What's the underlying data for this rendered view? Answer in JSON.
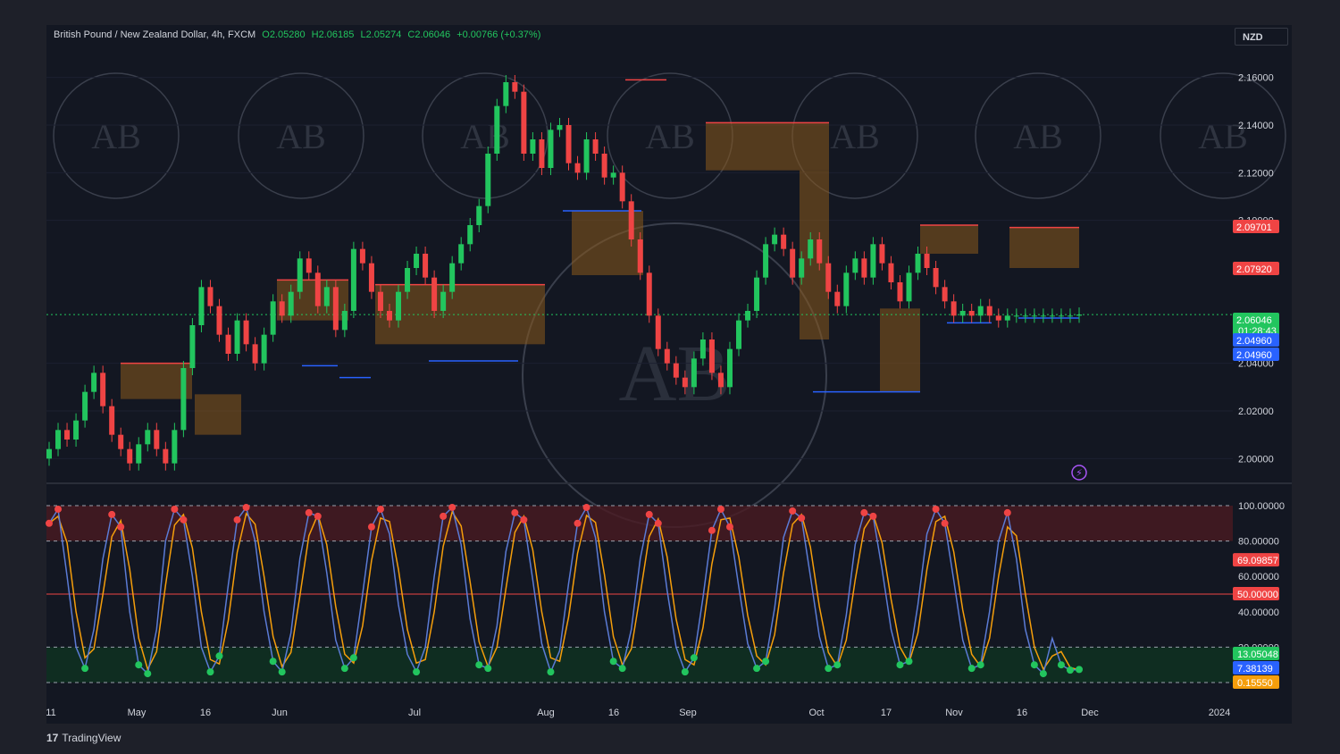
{
  "header": {
    "symbol": "British Pound / New Zealand Dollar, 4h, FXCM",
    "open": "O2.05280",
    "high": "H2.06185",
    "low": "L2.05274",
    "close": "C2.06046",
    "change": "+0.00766 (+0.37%)"
  },
  "currency_button": "NZD",
  "branding": {
    "logo_text": "TradingView",
    "logo_mark": "17",
    "watermark": "AB"
  },
  "colors": {
    "background": "#131722",
    "candle_up": "#22c55e",
    "candle_down": "#ef4444",
    "resistance_line": "#ef4444",
    "support_line": "#2962ff",
    "zone_fill": "#8a5a1c",
    "osc_k": "#5b7bd5",
    "osc_d": "#f59e0b",
    "overbought_fill": "#4a1a22",
    "oversold_fill": "#0f3322"
  },
  "price_tags": [
    {
      "label": "2.09701",
      "value": 2.09701,
      "color": "#ef4444"
    },
    {
      "label": "2.07920",
      "value": 2.0792,
      "color": "#ef4444"
    },
    {
      "label": "2.06046",
      "sublabel": "01:28:43",
      "value": 2.06046,
      "color": "#22c55e"
    },
    {
      "label": "2.04960",
      "value": 2.0496,
      "color": "#2962ff"
    },
    {
      "label": "2.04960",
      "value": 2.0496,
      "color": "#2962ff"
    }
  ],
  "osc_tags": [
    {
      "label": "69.09857",
      "value": 69.09857,
      "color": "#ef4444"
    },
    {
      "label": "50.00000",
      "value": 50,
      "color": "#ef4444"
    },
    {
      "label": "13.05048",
      "value": 13.05048,
      "color": "#22c55e"
    },
    {
      "label": "7.38139",
      "value": 7.38139,
      "color": "#2962ff"
    },
    {
      "label": "0.15550",
      "value": 0.1555,
      "color": "#f59e0b"
    }
  ],
  "chart_data": [
    {
      "type": "candlestick",
      "title": "British Pound / New Zealand Dollar, 4h, FXCM",
      "ylim": [
        1.99,
        2.17
      ],
      "y_ticks": [
        "2.16000",
        "2.14000",
        "2.12000",
        "2.10000",
        "2.04000",
        "2.02000",
        "2.00000"
      ],
      "x_ticks": [
        "11",
        "May",
        "16",
        "Jun",
        "Jul",
        "Aug",
        "16",
        "Sep",
        "Oct",
        "17",
        "Nov",
        "16",
        "Dec",
        "2024"
      ],
      "x": [
        0,
        10,
        20,
        30,
        40,
        50,
        60,
        70,
        80,
        90,
        100,
        110,
        120,
        130,
        140,
        150,
        160,
        170,
        180,
        190,
        200,
        210,
        220,
        230,
        240,
        250,
        260,
        270,
        280,
        290,
        300,
        310,
        320,
        330,
        340,
        350,
        360,
        370,
        380,
        390,
        400,
        410,
        420,
        430,
        440,
        450,
        460,
        470,
        480,
        490,
        500,
        510,
        520,
        530,
        540,
        550,
        560,
        570,
        580,
        590,
        600,
        610,
        620,
        630,
        640,
        650,
        660,
        670,
        680,
        690,
        700,
        710,
        720,
        730,
        740,
        750,
        760,
        770,
        780,
        790,
        800,
        810,
        820,
        830,
        840,
        850,
        860,
        870,
        880,
        890,
        900,
        910,
        920,
        930,
        940,
        950,
        960,
        970,
        980,
        990,
        1000,
        1010,
        1020,
        1030,
        1040,
        1050,
        1060,
        1070,
        1080,
        1090,
        1100,
        1110,
        1120,
        1130,
        1140,
        1150
      ],
      "close": [
        2.004,
        2.012,
        2.008,
        2.016,
        2.028,
        2.036,
        2.022,
        2.01,
        2.004,
        1.998,
        2.006,
        2.012,
        2.004,
        1.998,
        2.012,
        2.038,
        2.056,
        2.072,
        2.064,
        2.052,
        2.044,
        2.058,
        2.048,
        2.04,
        2.052,
        2.066,
        2.06,
        2.07,
        2.084,
        2.078,
        2.064,
        2.072,
        2.054,
        2.062,
        2.088,
        2.082,
        2.07,
        2.062,
        2.058,
        2.07,
        2.08,
        2.086,
        2.076,
        2.062,
        2.07,
        2.082,
        2.09,
        2.098,
        2.106,
        2.128,
        2.148,
        2.158,
        2.154,
        2.128,
        2.134,
        2.122,
        2.138,
        2.14,
        2.124,
        2.12,
        2.134,
        2.128,
        2.118,
        2.12,
        2.108,
        2.092,
        2.078,
        2.06,
        2.046,
        2.04,
        2.034,
        2.03,
        2.042,
        2.05,
        2.036,
        2.03,
        2.046,
        2.058,
        2.062,
        2.076,
        2.09,
        2.094,
        2.088,
        2.076,
        2.084,
        2.092,
        2.082,
        2.07,
        2.064,
        2.078,
        2.084,
        2.076,
        2.09,
        2.082,
        2.074,
        2.066,
        2.078,
        2.086,
        2.08,
        2.072,
        2.066,
        2.06,
        2.062,
        2.06,
        2.064,
        2.06,
        2.058,
        2.06,
        2.06,
        2.06,
        2.06,
        2.06,
        2.06,
        2.06,
        2.06,
        2.06046
      ]
    },
    {
      "type": "line",
      "series": [
        {
          "name": "%K"
        },
        {
          "name": "%D"
        }
      ],
      "ylim": [
        0,
        100
      ],
      "y_ticks": [
        "100.00000",
        "80.00000",
        "60.00000",
        "40.00000",
        "20.00000"
      ],
      "levels": [
        100,
        80,
        50,
        20,
        0
      ],
      "k": [
        90,
        98,
        60,
        20,
        8,
        30,
        70,
        95,
        88,
        40,
        10,
        5,
        30,
        80,
        98,
        92,
        60,
        20,
        6,
        15,
        55,
        92,
        99,
        80,
        40,
        12,
        6,
        28,
        70,
        96,
        94,
        62,
        24,
        8,
        14,
        50,
        88,
        98,
        84,
        44,
        16,
        6,
        20,
        60,
        94,
        99,
        78,
        36,
        10,
        8,
        32,
        74,
        96,
        92,
        58,
        22,
        6,
        18,
        56,
        90,
        99,
        82,
        40,
        12,
        8,
        30,
        70,
        95,
        90,
        52,
        20,
        6,
        14,
        48,
        86,
        98,
        88,
        54,
        22,
        8,
        12,
        42,
        82,
        97,
        93,
        60,
        26,
        8,
        10,
        38,
        78,
        96,
        94,
        64,
        30,
        10,
        12,
        44,
        84,
        98,
        90,
        58,
        24,
        8,
        10,
        40,
        80,
        96,
        70,
        30,
        10,
        5,
        25,
        10,
        7,
        7.38
      ]
    }
  ]
}
